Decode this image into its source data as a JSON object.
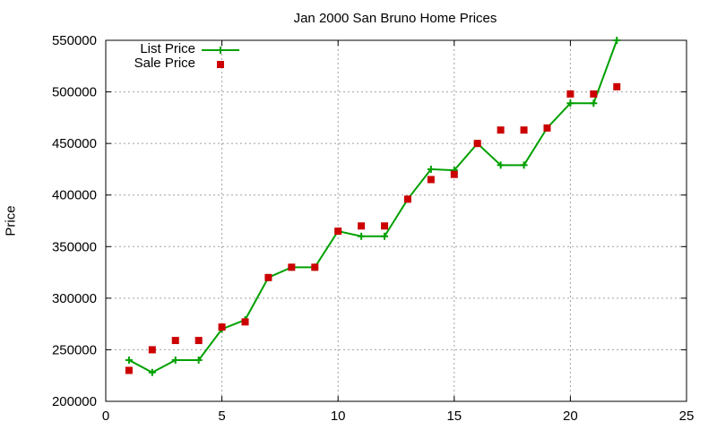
{
  "chart_data": {
    "type": "line",
    "title": "Jan 2000 San Bruno Home Prices",
    "xlabel": "",
    "ylabel": "Price",
    "xlim": [
      0,
      25
    ],
    "ylim": [
      200000,
      550000
    ],
    "xticks": [
      0,
      5,
      10,
      15,
      20,
      25
    ],
    "yticks": [
      200000,
      250000,
      300000,
      350000,
      400000,
      450000,
      500000,
      550000
    ],
    "grid": true,
    "legend_position": "top-left",
    "x": [
      1,
      2,
      3,
      4,
      5,
      6,
      7,
      8,
      9,
      10,
      11,
      12,
      13,
      14,
      15,
      16,
      17,
      18,
      19,
      20,
      21,
      22
    ],
    "series": [
      {
        "name": "List Price",
        "style": "linespoints",
        "color": "#00a000",
        "values": [
          240000,
          228000,
          240000,
          240000,
          270000,
          279000,
          320000,
          330000,
          330000,
          365000,
          360000,
          360000,
          396000,
          425000,
          424000,
          450000,
          429000,
          429000,
          465000,
          489000,
          489000,
          550000
        ]
      },
      {
        "name": "Sale Price",
        "style": "points",
        "color": "#cc0000",
        "values": [
          230000,
          250000,
          259000,
          259000,
          272000,
          277000,
          320000,
          330000,
          330000,
          365000,
          370000,
          370000,
          396000,
          415000,
          420000,
          450000,
          463000,
          463000,
          465000,
          498000,
          498000,
          505000
        ]
      }
    ]
  },
  "labels": {
    "title": "Jan 2000 San Bruno Home Prices",
    "ylabel": "Price",
    "legend_list": "List Price",
    "legend_sale": "Sale Price"
  }
}
